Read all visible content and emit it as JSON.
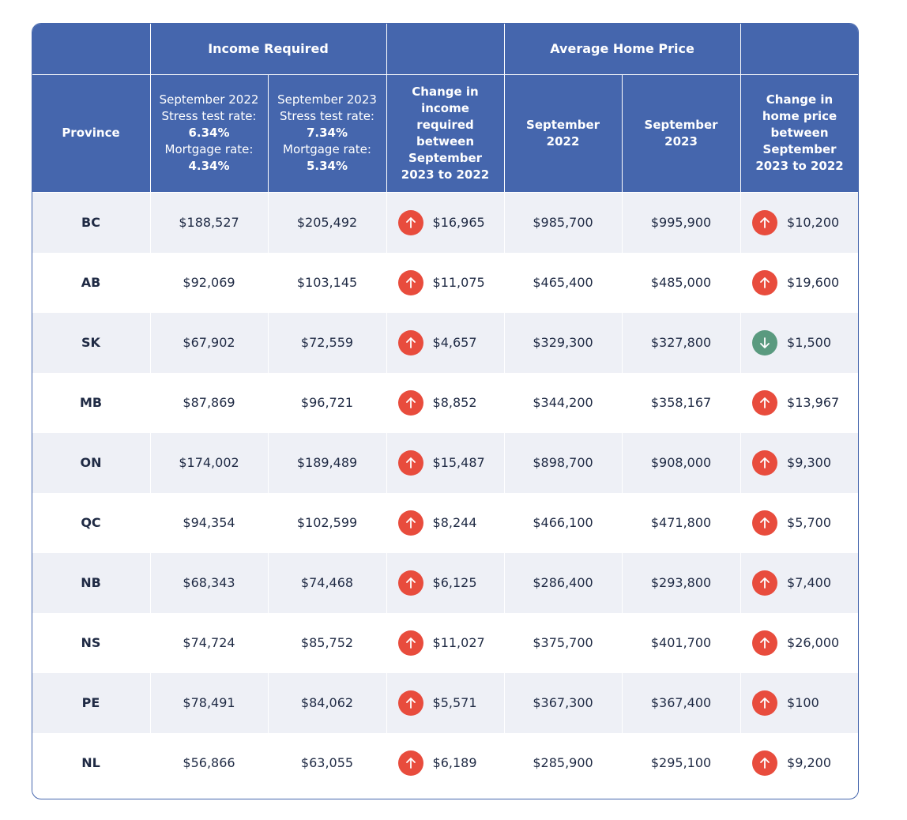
{
  "chart_data": {
    "type": "table",
    "group_headers": {
      "income": "Income Required",
      "home_price": "Average Home Price"
    },
    "columns": {
      "province": "Province",
      "income_2022": {
        "line1": "September 2022",
        "line2": "Stress test rate:",
        "line3": "6.34%",
        "line4": "Mortgage rate:",
        "line5": "4.34%"
      },
      "income_2023": {
        "line1": "September 2023",
        "line2": "Stress test rate:",
        "line3": "7.34%",
        "line4": "Mortgage rate:",
        "line5": "5.34%"
      },
      "income_change": [
        "Change in",
        "income",
        "required",
        "between",
        "September",
        "2023 to 2022"
      ],
      "price_2022": [
        "September",
        "2022"
      ],
      "price_2023": [
        "September",
        "2023"
      ],
      "price_change": [
        "Change in",
        "home price",
        "between",
        "September",
        "2023 to 2022"
      ]
    },
    "rows": [
      {
        "province": "BC",
        "income_2022": "$188,527",
        "income_2023": "$205,492",
        "income_change": "$16,965",
        "income_dir": "up",
        "price_2022": "$985,700",
        "price_2023": "$995,900",
        "price_change": "$10,200",
        "price_dir": "up"
      },
      {
        "province": "AB",
        "income_2022": "$92,069",
        "income_2023": "$103,145",
        "income_change": "$11,075",
        "income_dir": "up",
        "price_2022": "$465,400",
        "price_2023": "$485,000",
        "price_change": "$19,600",
        "price_dir": "up"
      },
      {
        "province": "SK",
        "income_2022": "$67,902",
        "income_2023": "$72,559",
        "income_change": "$4,657",
        "income_dir": "up",
        "price_2022": "$329,300",
        "price_2023": "$327,800",
        "price_change": "$1,500",
        "price_dir": "down"
      },
      {
        "province": "MB",
        "income_2022": "$87,869",
        "income_2023": "$96,721",
        "income_change": "$8,852",
        "income_dir": "up",
        "price_2022": "$344,200",
        "price_2023": "$358,167",
        "price_change": "$13,967",
        "price_dir": "up"
      },
      {
        "province": "ON",
        "income_2022": "$174,002",
        "income_2023": "$189,489",
        "income_change": "$15,487",
        "income_dir": "up",
        "price_2022": "$898,700",
        "price_2023": "$908,000",
        "price_change": "$9,300",
        "price_dir": "up"
      },
      {
        "province": "QC",
        "income_2022": "$94,354",
        "income_2023": "$102,599",
        "income_change": "$8,244",
        "income_dir": "up",
        "price_2022": "$466,100",
        "price_2023": "$471,800",
        "price_change": "$5,700",
        "price_dir": "up"
      },
      {
        "province": "NB",
        "income_2022": "$68,343",
        "income_2023": "$74,468",
        "income_change": "$6,125",
        "income_dir": "up",
        "price_2022": "$286,400",
        "price_2023": "$293,800",
        "price_change": "$7,400",
        "price_dir": "up"
      },
      {
        "province": "NS",
        "income_2022": "$74,724",
        "income_2023": "$85,752",
        "income_change": "$11,027",
        "income_dir": "up",
        "price_2022": "$375,700",
        "price_2023": "$401,700",
        "price_change": "$26,000",
        "price_dir": "up"
      },
      {
        "province": "PE",
        "income_2022": "$78,491",
        "income_2023": "$84,062",
        "income_change": "$5,571",
        "income_dir": "up",
        "price_2022": "$367,300",
        "price_2023": "$367,400",
        "price_change": "$100",
        "price_dir": "up"
      },
      {
        "province": "NL",
        "income_2022": "$56,866",
        "income_2023": "$63,055",
        "income_change": "$6,189",
        "income_dir": "up",
        "price_2022": "$285,900",
        "price_2023": "$295,100",
        "price_change": "$9,200",
        "price_dir": "up"
      }
    ],
    "colors": {
      "header_bg": "#4566ad",
      "up_arrow": "#e84c3d",
      "down_arrow": "#5a9a7f",
      "stripe": "#eef0f6"
    }
  }
}
